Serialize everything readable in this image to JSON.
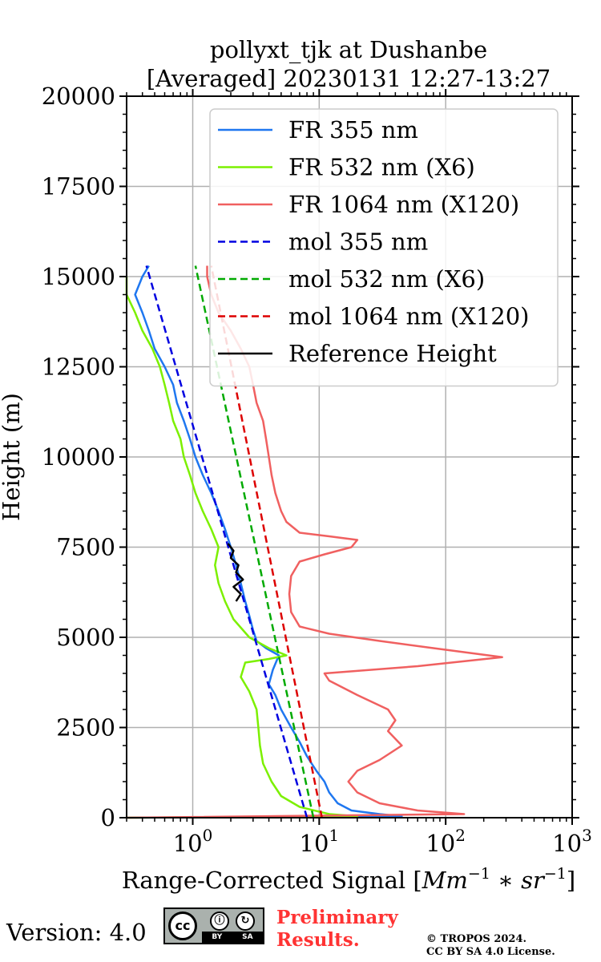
{
  "chart_data": {
    "type": "line",
    "title": "pollyxt_tjk at Dushanbe",
    "subtitle": "[Averaged] 20230131 12:27-13:27",
    "xlabel": "Range-Corrected Signal",
    "xlabel_units_base": "Mm",
    "xlabel_units_exp1": "−1",
    "xlabel_units_mid": " ∗ sr",
    "xlabel_units_exp2": "−1",
    "ylabel": "Height (m)",
    "xscale": "log",
    "xlim": [
      0.3,
      1000
    ],
    "ylim": [
      0,
      20000
    ],
    "x_ticks": [
      1,
      10,
      100,
      1000
    ],
    "x_tick_labels": [
      {
        "base": "10",
        "exp": "0"
      },
      {
        "base": "10",
        "exp": "1"
      },
      {
        "base": "10",
        "exp": "2"
      },
      {
        "base": "10",
        "exp": "3"
      }
    ],
    "y_ticks": [
      0,
      2500,
      5000,
      7500,
      10000,
      12500,
      15000,
      17500,
      20000
    ],
    "y_tick_labels": [
      "0",
      "2500",
      "5000",
      "7500",
      "10000",
      "12500",
      "15000",
      "17500",
      "20000"
    ],
    "grid": true,
    "legend_position": "top-right",
    "series": [
      {
        "name": "FR 355 nm",
        "color": "#1f77f0",
        "style": "solid",
        "points": [
          [
            0.3,
            0
          ],
          [
            45,
            40
          ],
          [
            30,
            100
          ],
          [
            18,
            200
          ],
          [
            14,
            400
          ],
          [
            12,
            700
          ],
          [
            11,
            1000
          ],
          [
            9.5,
            1300
          ],
          [
            8,
            1700
          ],
          [
            7,
            2100
          ],
          [
            6,
            2500
          ],
          [
            5,
            3000
          ],
          [
            4.5,
            3400
          ],
          [
            4,
            3700
          ],
          [
            4.3,
            4100
          ],
          [
            4.8,
            4500
          ],
          [
            3.8,
            4700
          ],
          [
            3.2,
            4900
          ],
          [
            3,
            5200
          ],
          [
            2.8,
            5600
          ],
          [
            2.6,
            6000
          ],
          [
            2.4,
            6500
          ],
          [
            2.2,
            7000
          ],
          [
            2,
            7500
          ],
          [
            1.8,
            8000
          ],
          [
            1.6,
            8500
          ],
          [
            1.4,
            9000
          ],
          [
            1.2,
            9500
          ],
          [
            1.05,
            10000
          ],
          [
            0.95,
            10500
          ],
          [
            0.85,
            11000
          ],
          [
            0.75,
            11500
          ],
          [
            0.7,
            12000
          ],
          [
            0.6,
            12500
          ],
          [
            0.5,
            13000
          ],
          [
            0.45,
            13500
          ],
          [
            0.4,
            14000
          ],
          [
            0.35,
            14500
          ],
          [
            0.4,
            15000
          ],
          [
            0.45,
            15300
          ]
        ]
      },
      {
        "name": "FR 532 nm (X6)",
        "color": "#7cf000",
        "style": "solid",
        "points": [
          [
            0.3,
            0
          ],
          [
            20,
            40
          ],
          [
            12,
            100
          ],
          [
            7,
            300
          ],
          [
            5,
            600
          ],
          [
            4.2,
            1000
          ],
          [
            3.6,
            1500
          ],
          [
            3.4,
            2000
          ],
          [
            3.3,
            2500
          ],
          [
            3.2,
            3000
          ],
          [
            2.8,
            3500
          ],
          [
            2.4,
            3900
          ],
          [
            2.6,
            4300
          ],
          [
            4,
            4400
          ],
          [
            5.5,
            4500
          ],
          [
            4,
            4700
          ],
          [
            2.8,
            5000
          ],
          [
            2.1,
            5500
          ],
          [
            1.8,
            6000
          ],
          [
            1.6,
            6500
          ],
          [
            1.5,
            7000
          ],
          [
            1.6,
            7500
          ],
          [
            1.4,
            8000
          ],
          [
            1.2,
            8500
          ],
          [
            1.05,
            9000
          ],
          [
            0.95,
            9500
          ],
          [
            0.85,
            10000
          ],
          [
            0.8,
            10500
          ],
          [
            0.7,
            11000
          ],
          [
            0.65,
            11500
          ],
          [
            0.6,
            12000
          ],
          [
            0.55,
            12500
          ],
          [
            0.48,
            13000
          ],
          [
            0.4,
            13500
          ],
          [
            0.35,
            14000
          ],
          [
            0.3,
            14500
          ],
          [
            0.3,
            15000
          ]
        ]
      },
      {
        "name": "FR 1064 nm (X120)",
        "color": "#f06060",
        "style": "solid",
        "points": [
          [
            0.3,
            0
          ],
          [
            140,
            100
          ],
          [
            60,
            200
          ],
          [
            30,
            400
          ],
          [
            20,
            700
          ],
          [
            17,
            1000
          ],
          [
            20,
            1300
          ],
          [
            30,
            1600
          ],
          [
            45,
            2000
          ],
          [
            35,
            2400
          ],
          [
            40,
            2700
          ],
          [
            35,
            3000
          ],
          [
            20,
            3400
          ],
          [
            12,
            3800
          ],
          [
            11,
            4000
          ],
          [
            60,
            4200
          ],
          [
            280,
            4450
          ],
          [
            80,
            4700
          ],
          [
            30,
            4900
          ],
          [
            12,
            5100
          ],
          [
            7,
            5300
          ],
          [
            6,
            5700
          ],
          [
            5.8,
            6200
          ],
          [
            6,
            6700
          ],
          [
            7,
            7100
          ],
          [
            11,
            7300
          ],
          [
            18,
            7500
          ],
          [
            20,
            7700
          ],
          [
            12,
            7800
          ],
          [
            7,
            7900
          ],
          [
            5.5,
            8200
          ],
          [
            5,
            8500
          ],
          [
            4.5,
            9000
          ],
          [
            4.2,
            9500
          ],
          [
            4,
            10000
          ],
          [
            3.8,
            10500
          ],
          [
            3.6,
            11000
          ],
          [
            3.2,
            11500
          ],
          [
            3,
            12000
          ],
          [
            2.8,
            12500
          ],
          [
            2.4,
            13000
          ],
          [
            2,
            13500
          ],
          [
            1.6,
            14000
          ],
          [
            1.4,
            14500
          ],
          [
            1.3,
            15000
          ],
          [
            1.3,
            15300
          ]
        ]
      },
      {
        "name": "mol 355 nm",
        "color": "#0000e0",
        "style": "dashed",
        "points": [
          [
            8,
            0
          ],
          [
            0.43,
            15300
          ]
        ]
      },
      {
        "name": "mol 532 nm (X6)",
        "color": "#00aa00",
        "style": "dashed",
        "points": [
          [
            9,
            0
          ],
          [
            1.05,
            15300
          ]
        ]
      },
      {
        "name": "mol 1064 nm (X120)",
        "color": "#dd0000",
        "style": "dashed",
        "points": [
          [
            10.5,
            0
          ],
          [
            1.4,
            15300
          ]
        ]
      },
      {
        "name": "Reference Height",
        "color": "#000000",
        "style": "solid",
        "points": [
          [
            2.2,
            6000
          ],
          [
            2.4,
            6200
          ],
          [
            2.1,
            6400
          ],
          [
            2.5,
            6600
          ],
          [
            2.2,
            6800
          ],
          [
            2.3,
            7000
          ],
          [
            2,
            7200
          ],
          [
            2.1,
            7400
          ],
          [
            1.9,
            7600
          ]
        ]
      }
    ]
  },
  "footer": {
    "version_label": "Version: 4.0",
    "license_badge": {
      "main": "cc",
      "by": "BY",
      "sa": "SA"
    },
    "preliminary_line1": "Preliminary",
    "preliminary_line2": "Results.",
    "copyright_line1": "© TROPOS 2024.",
    "copyright_line2": "CC BY SA 4.0 License."
  }
}
